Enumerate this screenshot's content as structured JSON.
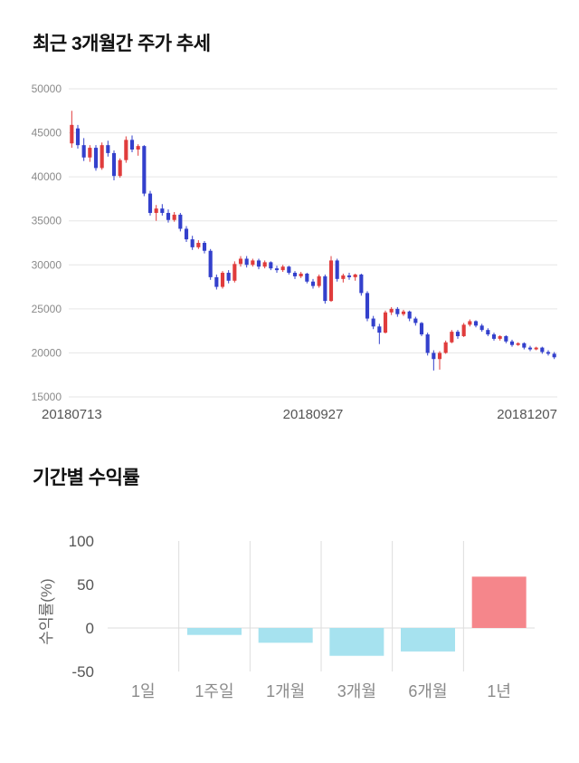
{
  "page": {
    "price_section_title": "최근 3개월간 주가 추세",
    "returns_section_title": "기간별 수익률"
  },
  "chart_data": [
    {
      "type": "candlestick",
      "title": "최근 3개월간 주가 추세",
      "x_tick_labels": [
        "20180713",
        "20180927",
        "20181207"
      ],
      "ylim": [
        15000,
        50000
      ],
      "y_ticks": [
        50000,
        45000,
        40000,
        35000,
        30000,
        25000,
        20000,
        15000
      ],
      "up_color": "#e03c3c",
      "down_color": "#3340cc",
      "grid_color": "#e6e6e6",
      "candles": [
        [
          43800,
          47500,
          43300,
          45900
        ],
        [
          45500,
          45900,
          43200,
          43600
        ],
        [
          43600,
          44400,
          41800,
          42200
        ],
        [
          42200,
          43600,
          41700,
          43300
        ],
        [
          43300,
          43600,
          40700,
          41000
        ],
        [
          41000,
          43900,
          40800,
          43600
        ],
        [
          43600,
          44100,
          42300,
          42700
        ],
        [
          42700,
          43000,
          39600,
          40100
        ],
        [
          40100,
          42100,
          39900,
          41900
        ],
        [
          41900,
          44600,
          41600,
          44200
        ],
        [
          44200,
          44700,
          42800,
          43100
        ],
        [
          43100,
          43700,
          42400,
          43500
        ],
        [
          43500,
          43600,
          37800,
          38100
        ],
        [
          38100,
          38400,
          35600,
          35900
        ],
        [
          35900,
          36800,
          35000,
          36400
        ],
        [
          36400,
          36900,
          35600,
          35900
        ],
        [
          35900,
          36300,
          34800,
          35100
        ],
        [
          35100,
          36000,
          34900,
          35700
        ],
        [
          35700,
          35900,
          33800,
          34100
        ],
        [
          34100,
          34400,
          32600,
          32900
        ],
        [
          32900,
          33300,
          31700,
          32000
        ],
        [
          32000,
          32800,
          31800,
          32500
        ],
        [
          32500,
          32700,
          31300,
          31600
        ],
        [
          31600,
          31800,
          28300,
          28600
        ],
        [
          28600,
          28900,
          27200,
          27500
        ],
        [
          27500,
          29300,
          27300,
          29100
        ],
        [
          29100,
          29400,
          27900,
          28200
        ],
        [
          28200,
          30400,
          28000,
          30100
        ],
        [
          30100,
          31000,
          29800,
          30700
        ],
        [
          30700,
          31000,
          29700,
          30000
        ],
        [
          30000,
          30700,
          29800,
          30500
        ],
        [
          30500,
          30700,
          29500,
          29800
        ],
        [
          29800,
          30500,
          29600,
          30300
        ],
        [
          30300,
          30400,
          29400,
          29600
        ],
        [
          29600,
          29900,
          29100,
          29400
        ],
        [
          29400,
          30000,
          29200,
          29800
        ],
        [
          29800,
          29900,
          28900,
          29100
        ],
        [
          29100,
          29300,
          28400,
          28700
        ],
        [
          28700,
          29200,
          28500,
          29000
        ],
        [
          29000,
          29100,
          27900,
          28100
        ],
        [
          28100,
          28400,
          27300,
          27600
        ],
        [
          27600,
          28900,
          27400,
          28700
        ],
        [
          28700,
          28900,
          25600,
          25900
        ],
        [
          25900,
          31000,
          25800,
          30500
        ],
        [
          30500,
          30700,
          28100,
          28400
        ],
        [
          28400,
          29000,
          28000,
          28800
        ],
        [
          28800,
          29100,
          28300,
          28600
        ],
        [
          28600,
          29000,
          28200,
          28900
        ],
        [
          28900,
          29000,
          26500,
          26800
        ],
        [
          26800,
          27000,
          23600,
          23900
        ],
        [
          23900,
          24200,
          22700,
          23000
        ],
        [
          23000,
          23300,
          21000,
          22300
        ],
        [
          22300,
          24800,
          22200,
          24600
        ],
        [
          24600,
          25200,
          24300,
          25000
        ],
        [
          25000,
          25200,
          24100,
          24400
        ],
        [
          24400,
          24900,
          24200,
          24700
        ],
        [
          24700,
          24800,
          23600,
          23900
        ],
        [
          23900,
          24100,
          23100,
          23400
        ],
        [
          23400,
          23500,
          21900,
          22100
        ],
        [
          22100,
          22300,
          19700,
          20000
        ],
        [
          20000,
          20300,
          18000,
          19300
        ],
        [
          19300,
          20200,
          18100,
          20000
        ],
        [
          20000,
          21400,
          19900,
          21200
        ],
        [
          21200,
          22600,
          21100,
          22400
        ],
        [
          22400,
          22600,
          21600,
          21900
        ],
        [
          21900,
          23400,
          21800,
          23200
        ],
        [
          23200,
          23800,
          23000,
          23600
        ],
        [
          23600,
          23700,
          22900,
          23100
        ],
        [
          23100,
          23300,
          22400,
          22600
        ],
        [
          22600,
          22800,
          21900,
          22100
        ],
        [
          22100,
          22300,
          21400,
          21600
        ],
        [
          21600,
          22000,
          21400,
          21900
        ],
        [
          21900,
          22000,
          21100,
          21300
        ],
        [
          21300,
          21500,
          20700,
          20900
        ],
        [
          20900,
          21200,
          20800,
          21100
        ],
        [
          21100,
          21200,
          20400,
          20600
        ],
        [
          20600,
          20800,
          20200,
          20400
        ],
        [
          20400,
          20700,
          20300,
          20600
        ],
        [
          20600,
          20700,
          19900,
          20100
        ],
        [
          20100,
          20300,
          19700,
          19900
        ],
        [
          19900,
          20100,
          19300,
          19500
        ]
      ]
    },
    {
      "type": "bar",
      "title": "기간별 수익률",
      "categories": [
        "1일",
        "1주일",
        "1개월",
        "3개월",
        "6개월",
        "1년"
      ],
      "values": [
        0,
        -8,
        -17,
        -32,
        -27,
        59
      ],
      "ylabel": "수익률(%)",
      "y_ticks": [
        100,
        50,
        0,
        -50
      ],
      "ylim": [
        -50,
        100
      ],
      "positive_color": "#f5868b",
      "negative_color": "#a6e2ef",
      "grid_color": "#dddddd"
    }
  ]
}
